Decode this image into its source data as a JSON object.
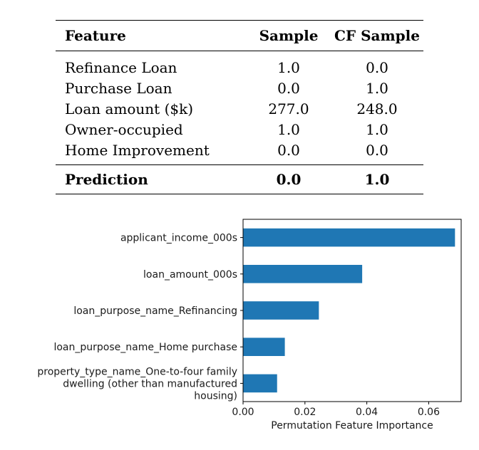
{
  "table": {
    "headers": [
      "Feature",
      "Sample",
      "CF Sample"
    ],
    "rows": [
      {
        "feature": "Refinance Loan",
        "sample": "1.0",
        "cf_sample": "0.0"
      },
      {
        "feature": "Purchase Loan",
        "sample": "0.0",
        "cf_sample": "1.0"
      },
      {
        "feature": "Loan amount ($k)",
        "sample": "277.0",
        "cf_sample": "248.0"
      },
      {
        "feature": "Owner-occupied",
        "sample": "1.0",
        "cf_sample": "1.0"
      },
      {
        "feature": "Home Improvement",
        "sample": "0.0",
        "cf_sample": "0.0"
      }
    ],
    "footer": {
      "feature": "Prediction",
      "sample": "0.0",
      "cf_sample": "1.0"
    }
  },
  "chart_data": {
    "type": "bar",
    "orientation": "horizontal",
    "categories": [
      [
        "applicant_income_000s"
      ],
      [
        "loan_amount_000s"
      ],
      [
        "loan_purpose_name_Refinancing"
      ],
      [
        "loan_purpose_name_Home purchase"
      ],
      [
        "property_type_name_One-to-four family",
        "dwelling (other than manufactured",
        "housing)"
      ]
    ],
    "values": [
      0.0685,
      0.0385,
      0.0245,
      0.0135,
      0.011
    ],
    "xlabel": "Permutation Feature Importance",
    "ylabel": "",
    "title": "",
    "xlim": [
      0.0,
      0.0705
    ],
    "xticks": [
      0.0,
      0.02,
      0.04,
      0.06
    ],
    "xtick_labels": [
      "0.00",
      "0.02",
      "0.04",
      "0.06"
    ],
    "bar_color": "#1f77b4",
    "grid": false,
    "legend": "none"
  }
}
